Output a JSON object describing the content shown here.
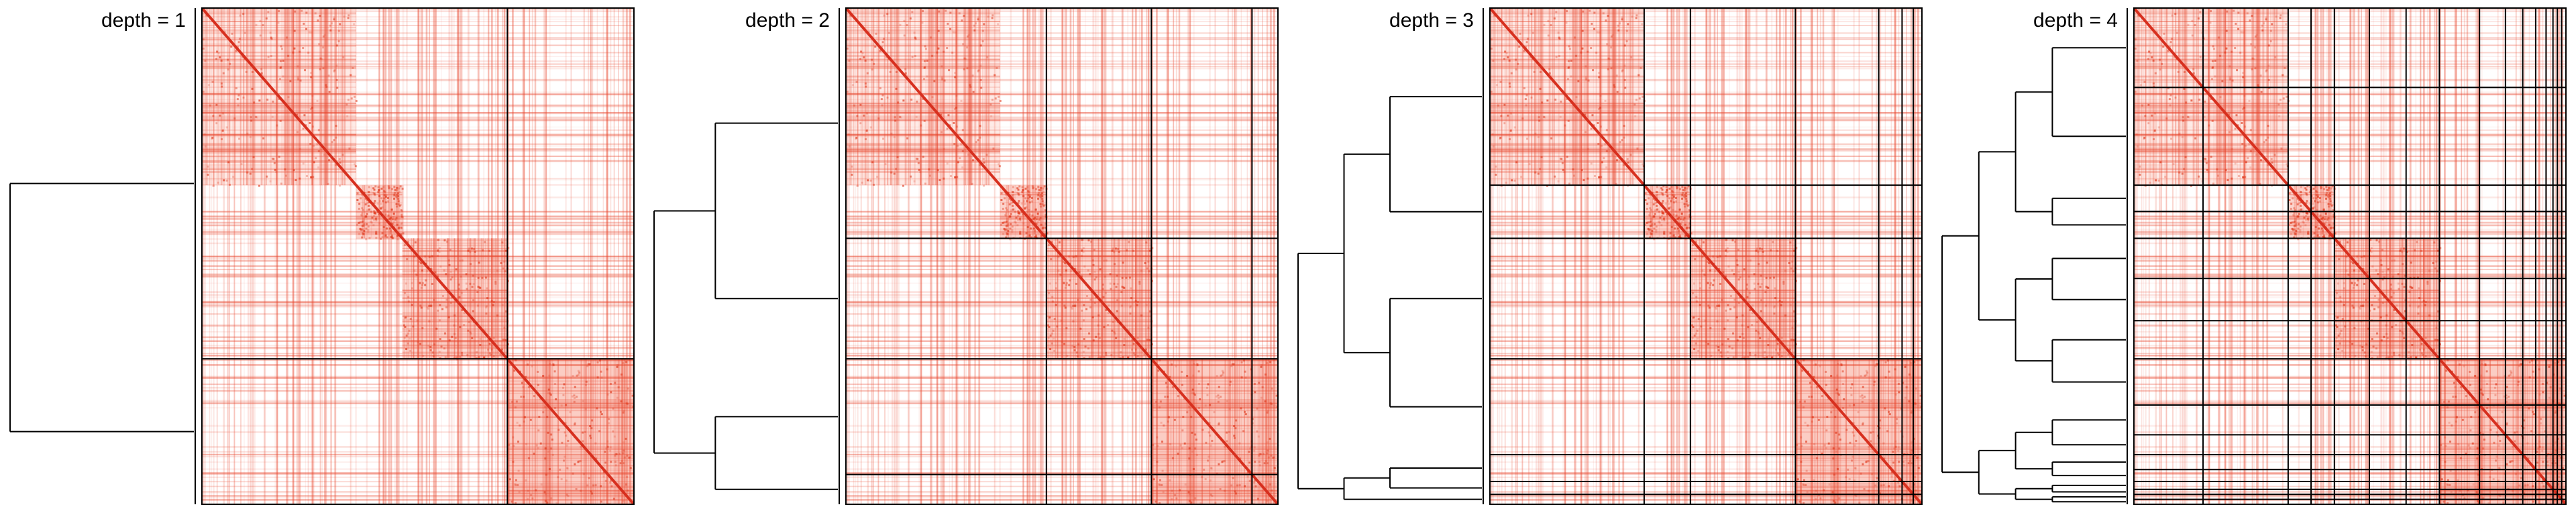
{
  "panels": [
    {
      "label": "depth = 1"
    },
    {
      "label": "depth = 2"
    },
    {
      "label": "depth = 3"
    },
    {
      "label": "depth = 4"
    }
  ]
}
